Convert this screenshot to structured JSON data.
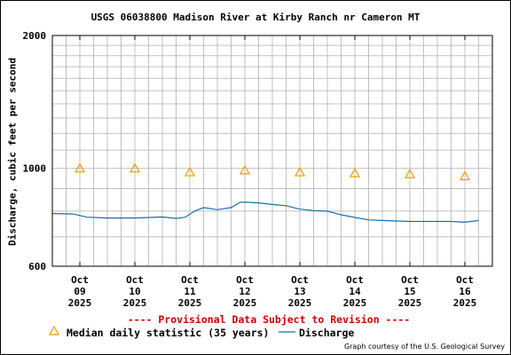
{
  "title": "USGS 06038800 Madison River at Kirby Ranch nr Cameron MT",
  "provisional_text": "---- Provisional Data Subject to Revision ----",
  "courtesy": "Graph courtesy of the U.S. Geological Survey",
  "colors": {
    "provisional": "#cc0000",
    "median_marker": "#e8a000",
    "discharge_line": "#1a6fa8",
    "grid": "#c0c0c0"
  },
  "legend": {
    "median_label": "Median daily statistic (35 years)",
    "discharge_label": "Discharge"
  },
  "chart_data": {
    "type": "line",
    "title": "USGS 06038800 Madison River at Kirby Ranch nr Cameron MT",
    "ylabel": "Discharge, cubic feet per second",
    "xlabel": "",
    "y_scale": "log",
    "ylim": [
      600,
      2000
    ],
    "y_ticks": [
      600,
      1000,
      2000
    ],
    "x_range": [
      "2025-10-08T12:00",
      "2025-10-16T12:00"
    ],
    "x_tick_labels": [
      {
        "month": "Oct",
        "day": "09",
        "year": "2025"
      },
      {
        "month": "Oct",
        "day": "10",
        "year": "2025"
      },
      {
        "month": "Oct",
        "day": "11",
        "year": "2025"
      },
      {
        "month": "Oct",
        "day": "12",
        "year": "2025"
      },
      {
        "month": "Oct",
        "day": "13",
        "year": "2025"
      },
      {
        "month": "Oct",
        "day": "14",
        "year": "2025"
      },
      {
        "month": "Oct",
        "day": "15",
        "year": "2025"
      },
      {
        "month": "Oct",
        "day": "16",
        "year": "2025"
      }
    ],
    "grid": true,
    "series": [
      {
        "name": "Median daily statistic (35 years)",
        "type": "scatter",
        "marker": "triangle",
        "x": [
          "2025-10-09",
          "2025-10-10",
          "2025-10-11",
          "2025-10-12",
          "2025-10-13",
          "2025-10-14",
          "2025-10-15",
          "2025-10-16"
        ],
        "y": [
          1000,
          1000,
          980,
          990,
          980,
          975,
          970,
          960
        ]
      },
      {
        "name": "Discharge",
        "type": "line",
        "x": [
          "2025-10-08T12:00",
          "2025-10-08T21:00",
          "2025-10-09T03:00",
          "2025-10-09T12:00",
          "2025-10-10T00:00",
          "2025-10-10T12:00",
          "2025-10-10T18:00",
          "2025-10-10T22:00",
          "2025-10-11T02:00",
          "2025-10-11T06:00",
          "2025-10-11T12:00",
          "2025-10-11T18:00",
          "2025-10-11T22:00",
          "2025-10-12T01:00",
          "2025-10-12T06:00",
          "2025-10-12T12:00",
          "2025-10-12T18:00",
          "2025-10-13T00:00",
          "2025-10-13T06:00",
          "2025-10-13T12:00",
          "2025-10-13T18:00",
          "2025-10-14T00:00",
          "2025-10-14T06:00",
          "2025-10-14T12:00",
          "2025-10-14T18:00",
          "2025-10-15T00:00",
          "2025-10-15T12:00",
          "2025-10-15T18:00",
          "2025-10-16T00:00",
          "2025-10-16T06:00"
        ],
        "y": [
          790,
          788,
          775,
          772,
          772,
          776,
          770,
          775,
          800,
          815,
          806,
          815,
          838,
          838,
          835,
          828,
          823,
          808,
          802,
          800,
          785,
          774,
          764,
          762,
          760,
          758,
          758,
          758,
          755,
          762
        ]
      }
    ]
  }
}
